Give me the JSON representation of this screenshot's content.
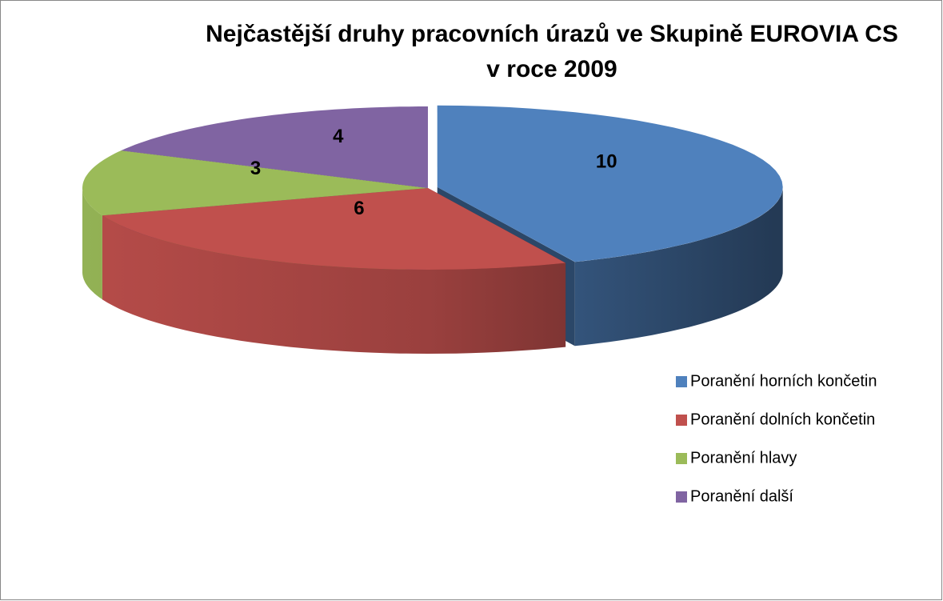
{
  "chart_data": {
    "type": "pie3d",
    "title": [
      "Nejčastější druhy pracovních úrazů ve Skupině EUROVIA CS",
      "v roce 2009"
    ],
    "categories": [
      "Poranění horních končetin",
      "Poranění dolních končetin",
      "Poranění hlavy",
      "Poranění další"
    ],
    "values": [
      10,
      6,
      3,
      4
    ],
    "colors": [
      "#4f81bd",
      "#c0504d",
      "#9bbb59",
      "#8064a2"
    ],
    "legend": "right"
  }
}
